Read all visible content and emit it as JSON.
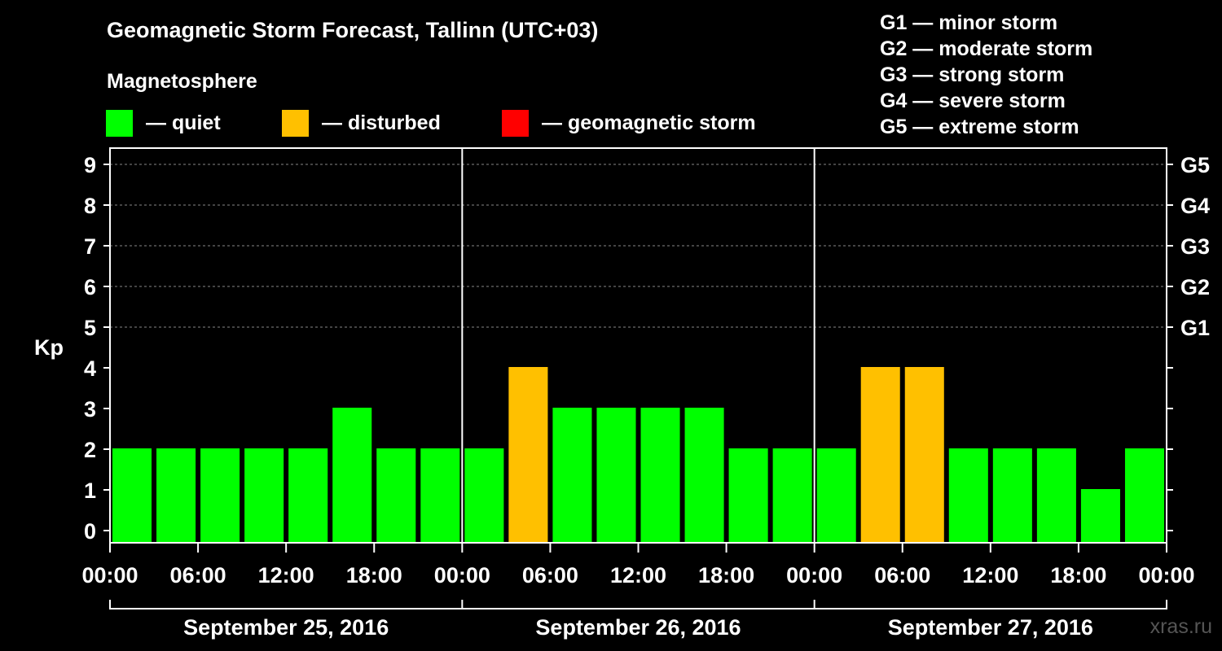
{
  "title": "Geomagnetic Storm Forecast, Tallinn (UTC+03)",
  "section_label": "Magnetosphere",
  "legend": {
    "quiet": {
      "label": "— quiet",
      "color": "#00ff00"
    },
    "disturbed": {
      "label": "— disturbed",
      "color": "#ffc000"
    },
    "storm": {
      "label": "— geomagnetic storm",
      "color": "#ff0000"
    }
  },
  "g_scale": [
    "G1 — minor storm",
    "G2 — moderate storm",
    "G3 — strong storm",
    "G4 — severe storm",
    "G5 — extreme storm"
  ],
  "watermark": "xras.ru",
  "chart_data": {
    "type": "bar",
    "ylabel": "Kp",
    "ylim": [
      0,
      9
    ],
    "yticks": [
      0,
      1,
      2,
      3,
      4,
      5,
      6,
      7,
      8,
      9
    ],
    "y2ticks": [
      {
        "value": 5,
        "label": "G1"
      },
      {
        "value": 6,
        "label": "G2"
      },
      {
        "value": 7,
        "label": "G3"
      },
      {
        "value": 8,
        "label": "G4"
      },
      {
        "value": 9,
        "label": "G5"
      }
    ],
    "grid": "dashed horizontal at 5–9",
    "xticks": [
      "00:00",
      "06:00",
      "12:00",
      "18:00",
      "00:00",
      "06:00",
      "12:00",
      "18:00",
      "00:00",
      "06:00",
      "12:00",
      "18:00",
      "00:00"
    ],
    "days": [
      "September 25, 2016",
      "September 26, 2016",
      "September 27, 2016"
    ],
    "categories": [
      "00:00",
      "03:00",
      "06:00",
      "09:00",
      "12:00",
      "15:00",
      "18:00",
      "21:00",
      "00:00",
      "03:00",
      "06:00",
      "09:00",
      "12:00",
      "15:00",
      "18:00",
      "21:00",
      "00:00",
      "03:00",
      "06:00",
      "09:00",
      "12:00",
      "15:00",
      "18:00",
      "21:00"
    ],
    "values": [
      2,
      2,
      2,
      2,
      2,
      3,
      2,
      2,
      2,
      4,
      3,
      3,
      3,
      3,
      2,
      2,
      2,
      4,
      4,
      2,
      2,
      2,
      1,
      2
    ],
    "status": [
      "quiet",
      "quiet",
      "quiet",
      "quiet",
      "quiet",
      "quiet",
      "quiet",
      "quiet",
      "quiet",
      "disturbed",
      "quiet",
      "quiet",
      "quiet",
      "quiet",
      "quiet",
      "quiet",
      "quiet",
      "disturbed",
      "disturbed",
      "quiet",
      "quiet",
      "quiet",
      "quiet",
      "quiet"
    ]
  }
}
